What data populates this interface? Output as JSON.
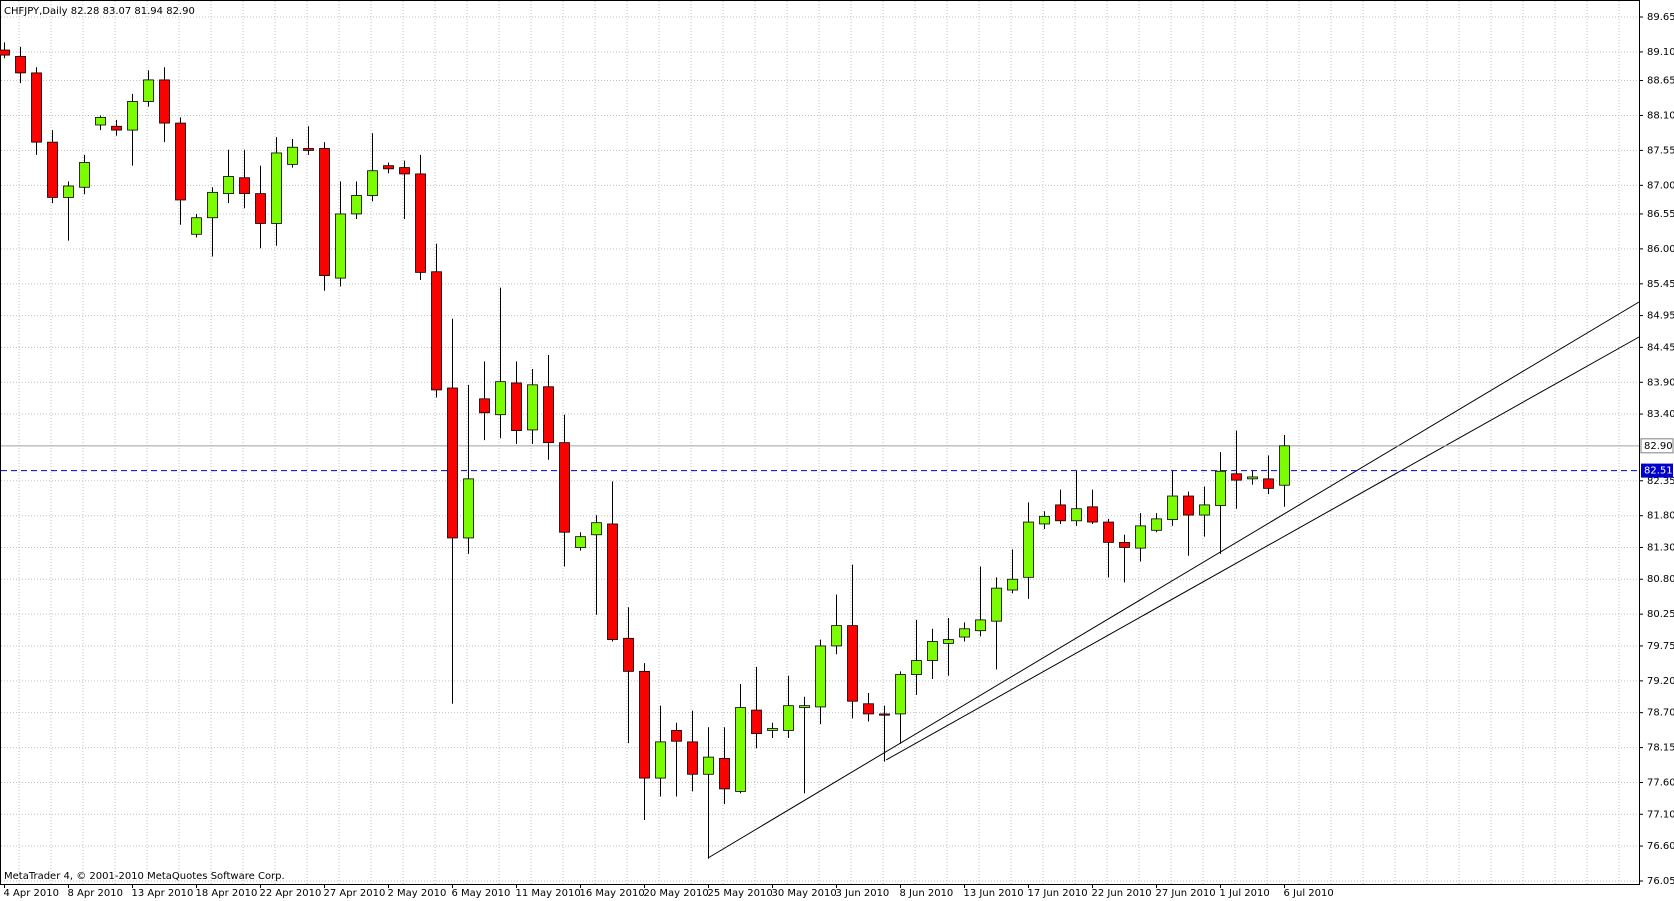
{
  "chart_data": {
    "type": "candlestick",
    "title": "CHFJPY,Daily  82.28 83.07 81.94 82.90",
    "footer": "MetaTrader 4, © 2001-2010 MetaQuotes Software Corp.",
    "categories": [
      "4 Apr 2010",
      null,
      null,
      null,
      "8 Apr 2010",
      null,
      null,
      null,
      "13 Apr 2010",
      null,
      null,
      null,
      "18 Apr 2010",
      null,
      null,
      null,
      "22 Apr 2010",
      null,
      null,
      null,
      "27 Apr 2010",
      null,
      null,
      null,
      "2 May 2010",
      null,
      null,
      null,
      "6 May 2010",
      null,
      null,
      null,
      "11 May 2010",
      null,
      null,
      null,
      "16 May 2010",
      null,
      null,
      null,
      "20 May 2010",
      null,
      null,
      null,
      "25 May 2010",
      null,
      null,
      null,
      "30 May 2010",
      null,
      null,
      null,
      "3 Jun 2010",
      null,
      null,
      null,
      "8 Jun 2010",
      null,
      null,
      null,
      "13 Jun 2010",
      null,
      null,
      null,
      "17 Jun 2010",
      null,
      null,
      null,
      "22 Jun 2010",
      null,
      null,
      null,
      "27 Jun 2010",
      null,
      null,
      null,
      "1 Jul 2010",
      null,
      null,
      null,
      "6 Jul 2010"
    ],
    "open": [
      89.13,
      89.03,
      88.77,
      87.68,
      86.81,
      86.97,
      87.95,
      87.93,
      87.87,
      88.32,
      88.66,
      87.98,
      86.23,
      86.49,
      86.87,
      87.12,
      86.87,
      86.4,
      87.33,
      87.58,
      87.58,
      85.54,
      86.55,
      86.84,
      87.31,
      87.28,
      87.18,
      85.64,
      83.81,
      81.45,
      83.64,
      83.39,
      83.89,
      83.15,
      83.83,
      82.95,
      81.3,
      81.5,
      81.67,
      79.87,
      79.35,
      77.67,
      78.42,
      78.24,
      77.73,
      77.98,
      77.46,
      78.74,
      78.42,
      78.42,
      78.78,
      78.79,
      79.75,
      80.07,
      78.84,
      78.68,
      78.68,
      79.3,
      79.52,
      79.79,
      79.89,
      79.99,
      80.14,
      80.63,
      80.83,
      81.67,
      81.97,
      81.72,
      81.94,
      81.7,
      81.38,
      81.29,
      81.57,
      81.74,
      82.11,
      81.81,
      81.96,
      82.46,
      82.38,
      82.38,
      82.28
    ],
    "high": [
      89.25,
      89.18,
      88.86,
      87.87,
      87.06,
      87.48,
      88.1,
      88.03,
      88.44,
      88.81,
      88.86,
      88.07,
      86.55,
      86.97,
      87.56,
      87.56,
      87.31,
      87.76,
      87.73,
      87.93,
      87.68,
      87.06,
      87.06,
      87.82,
      87.36,
      87.39,
      87.48,
      86.08,
      84.9,
      83.86,
      84.23,
      85.39,
      84.23,
      84.11,
      84.33,
      83.39,
      81.54,
      81.81,
      82.34,
      80.36,
      79.48,
      78.81,
      78.54,
      78.73,
      78.47,
      78.47,
      79.15,
      79.42,
      78.54,
      79.28,
      78.95,
      79.85,
      80.56,
      81.03,
      79.01,
      78.81,
      79.35,
      80.16,
      80.02,
      80.19,
      80.12,
      81.0,
      80.83,
      81.27,
      82.01,
      81.87,
      82.21,
      82.51,
      82.21,
      81.75,
      81.5,
      81.84,
      81.84,
      82.51,
      82.18,
      82.26,
      82.8,
      83.14,
      82.51,
      82.75,
      83.07
    ],
    "low": [
      89.0,
      88.61,
      87.48,
      86.72,
      86.13,
      86.86,
      87.87,
      87.78,
      87.31,
      88.24,
      87.68,
      86.38,
      86.18,
      85.88,
      86.72,
      86.64,
      86.01,
      86.05,
      87.28,
      87.48,
      85.34,
      85.41,
      86.47,
      86.75,
      87.19,
      86.47,
      85.51,
      83.66,
      78.84,
      81.2,
      82.99,
      83.02,
      82.93,
      82.93,
      82.68,
      81.0,
      81.25,
      80.24,
      79.82,
      78.22,
      77.01,
      77.38,
      77.38,
      77.46,
      76.4,
      77.26,
      77.43,
      78.14,
      78.3,
      78.3,
      77.43,
      78.52,
      79.62,
      78.61,
      78.56,
      77.93,
      78.21,
      78.98,
      79.23,
      79.28,
      79.82,
      79.9,
      79.38,
      80.58,
      80.49,
      81.59,
      81.67,
      81.64,
      81.67,
      80.83,
      80.75,
      81.08,
      81.54,
      81.64,
      81.17,
      81.47,
      81.2,
      81.91,
      82.29,
      82.14,
      81.94
    ],
    "close": [
      89.05,
      88.77,
      87.68,
      86.81,
      86.99,
      87.36,
      88.07,
      87.87,
      88.32,
      88.66,
      87.98,
      86.77,
      86.49,
      86.89,
      87.14,
      86.87,
      86.4,
      87.51,
      87.6,
      87.55,
      85.58,
      86.55,
      86.84,
      87.23,
      87.26,
      87.18,
      85.63,
      83.78,
      81.45,
      82.38,
      83.42,
      83.91,
      83.14,
      83.86,
      82.95,
      81.54,
      81.47,
      81.69,
      79.85,
      79.35,
      77.67,
      78.24,
      78.25,
      77.73,
      78.0,
      77.5,
      78.78,
      78.37,
      78.45,
      78.81,
      78.81,
      79.75,
      80.07,
      78.88,
      78.68,
      78.66,
      79.3,
      79.52,
      79.82,
      79.85,
      80.02,
      80.16,
      80.66,
      80.8,
      81.7,
      81.79,
      81.72,
      81.91,
      81.7,
      81.38,
      81.3,
      81.64,
      81.75,
      82.11,
      81.81,
      81.97,
      82.5,
      82.36,
      82.41,
      82.23,
      82.9
    ],
    "up_color": "#7cfc00",
    "down_color": "#ff0000",
    "ylim": [
      76.05,
      89.65
    ],
    "yticks": [
      {
        "value": 89.65,
        "label": "89.65"
      },
      {
        "value": 89.1,
        "label": "89.10"
      },
      {
        "value": 88.65,
        "label": "88.65"
      },
      {
        "value": 88.1,
        "label": "88.10"
      },
      {
        "value": 87.55,
        "label": "87.55"
      },
      {
        "value": 87,
        "label": "87.00"
      },
      {
        "value": 86.55,
        "label": "86.55"
      },
      {
        "value": 86,
        "label": "86.00"
      },
      {
        "value": 85.45,
        "label": "85.45"
      },
      {
        "value": 84.95,
        "label": "84.95"
      },
      {
        "value": 84.45,
        "label": "84.45"
      },
      {
        "value": 83.9,
        "label": "83.90"
      },
      {
        "value": 83.4,
        "label": "83.40"
      },
      {
        "value": 82.35,
        "label": "82.35"
      },
      {
        "value": 81.8,
        "label": "81.80"
      },
      {
        "value": 81.3,
        "label": "81.30"
      },
      {
        "value": 80.8,
        "label": "80.80"
      },
      {
        "value": 80.25,
        "label": "80.25"
      },
      {
        "value": 79.75,
        "label": "79.75"
      },
      {
        "value": 79.2,
        "label": "79.20"
      },
      {
        "value": 78.7,
        "label": "78.70"
      },
      {
        "value": 78.15,
        "label": "78.15"
      },
      {
        "value": 77.6,
        "label": "77.60"
      },
      {
        "value": 77.1,
        "label": "77.10"
      },
      {
        "value": 76.6,
        "label": "76.60"
      },
      {
        "value": 76.05,
        "label": "76.05"
      }
    ],
    "grid": true,
    "price_line": {
      "value": 82.9,
      "label": "82.90",
      "color": "#a0a0a0"
    },
    "level_line": {
      "value": 82.51,
      "label": "82.51",
      "color": "#0000cd"
    }
  }
}
